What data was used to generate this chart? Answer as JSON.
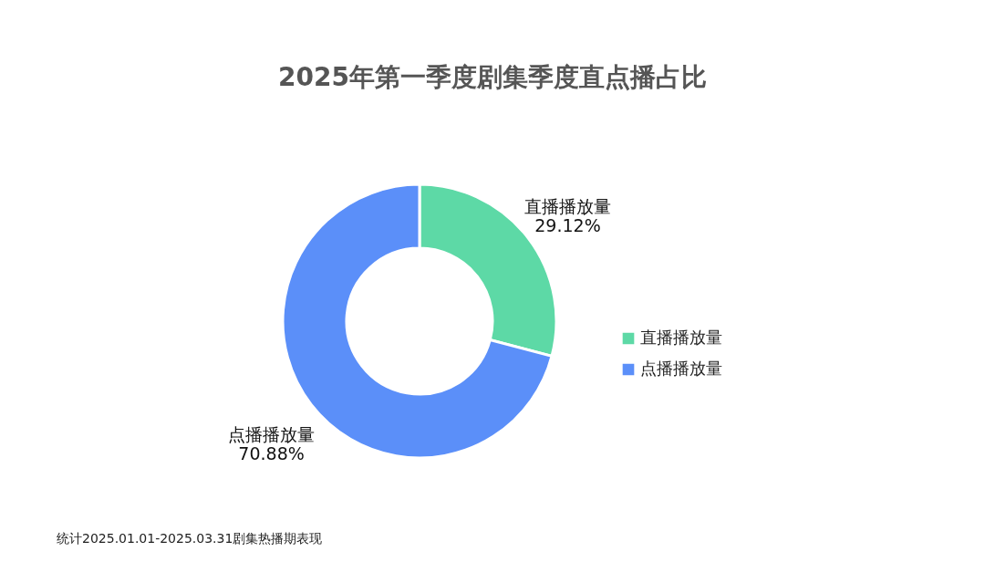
{
  "chart_data": {
    "type": "donut",
    "title": "2025年第一季度剧集季度直点播占比",
    "categories": [
      "直播播放量",
      "点播播放量"
    ],
    "values": [
      29.12,
      70.88
    ],
    "colors": [
      "#5dd9a6",
      "#5b8ff9"
    ],
    "value_labels": [
      "29.12%",
      "70.88%"
    ],
    "legend": "right",
    "annotations": [
      "统计2025.01.01-2025.03.31剧集热播期表现"
    ]
  }
}
